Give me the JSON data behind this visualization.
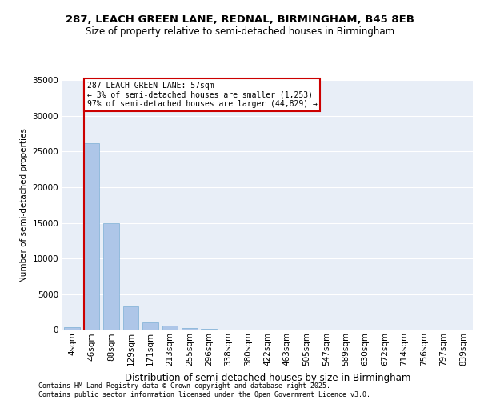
{
  "title_line1": "287, LEACH GREEN LANE, REDNAL, BIRMINGHAM, B45 8EB",
  "title_line2": "Size of property relative to semi-detached houses in Birmingham",
  "xlabel": "Distribution of semi-detached houses by size in Birmingham",
  "ylabel": "Number of semi-detached properties",
  "categories": [
    "4sqm",
    "46sqm",
    "88sqm",
    "129sqm",
    "171sqm",
    "213sqm",
    "255sqm",
    "296sqm",
    "338sqm",
    "380sqm",
    "422sqm",
    "463sqm",
    "505sqm",
    "547sqm",
    "589sqm",
    "630sqm",
    "672sqm",
    "714sqm",
    "756sqm",
    "797sqm",
    "839sqm"
  ],
  "values": [
    400,
    26100,
    15000,
    3300,
    1100,
    600,
    300,
    130,
    60,
    30,
    15,
    8,
    4,
    2,
    1,
    1,
    0,
    0,
    0,
    0,
    0
  ],
  "bar_color": "#aec6e8",
  "bar_edgecolor": "#7bafd4",
  "vline_x_index": 1,
  "vline_color": "#cc0000",
  "annotation_text": "287 LEACH GREEN LANE: 57sqm\n← 3% of semi-detached houses are smaller (1,253)\n97% of semi-detached houses are larger (44,829) →",
  "annotation_box_edgecolor": "#cc0000",
  "annotation_fontsize": 7.0,
  "ylim": [
    0,
    35000
  ],
  "yticks": [
    0,
    5000,
    10000,
    15000,
    20000,
    25000,
    30000,
    35000
  ],
  "background_color": "#e8eef7",
  "footer_line1": "Contains HM Land Registry data © Crown copyright and database right 2025.",
  "footer_line2": "Contains public sector information licensed under the Open Government Licence v3.0.",
  "title_fontsize": 9.5,
  "subtitle_fontsize": 8.5,
  "ylabel_fontsize": 7.5,
  "xlabel_fontsize": 8.5,
  "tick_fontsize": 7.5,
  "footer_fontsize": 6.0
}
